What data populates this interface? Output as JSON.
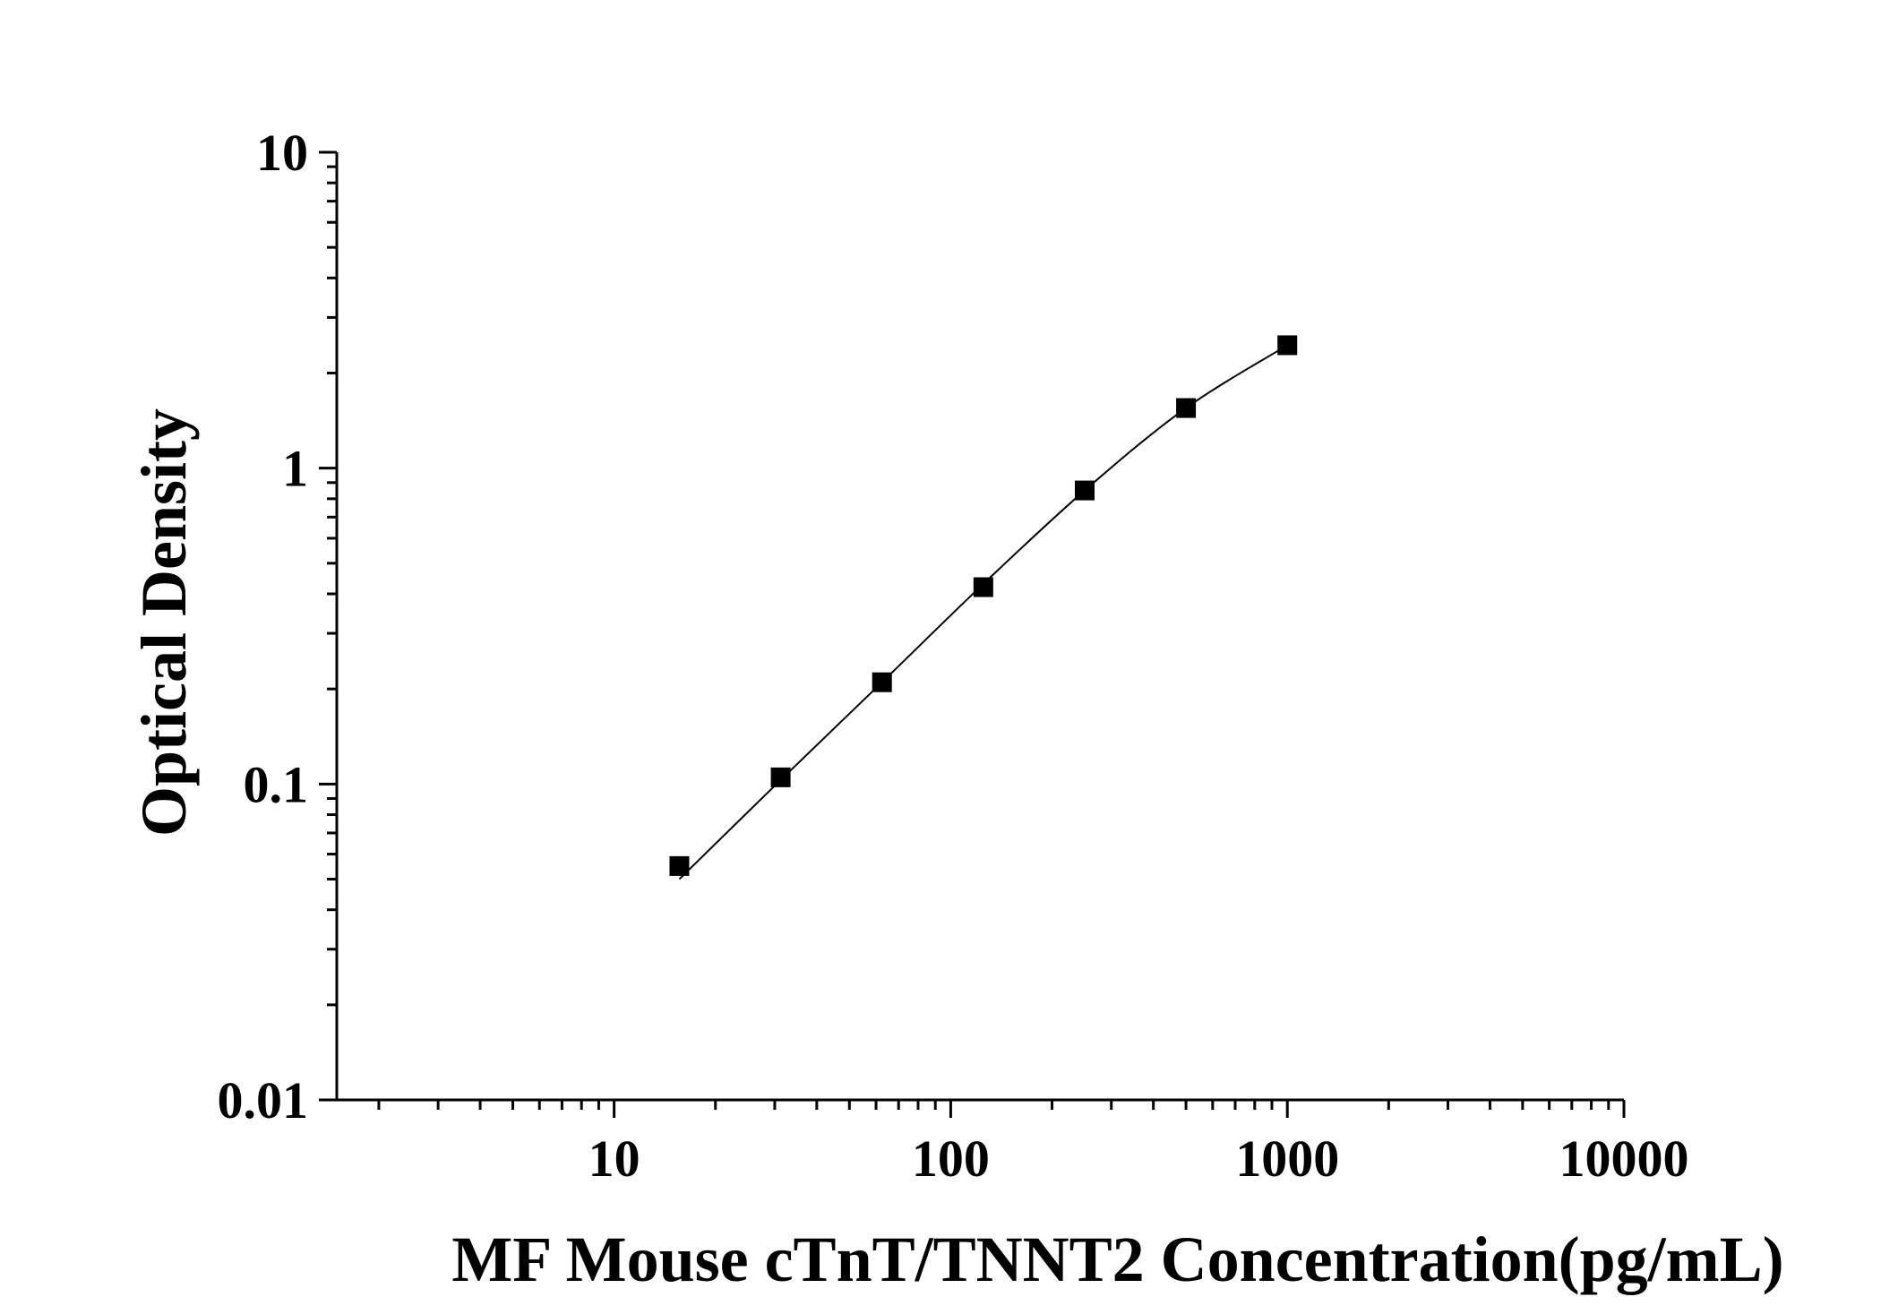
{
  "chart_data": {
    "type": "scatter",
    "title": "",
    "xlabel": "MF Mouse cTnT/TNNT2 Concentration(pg/mL)",
    "ylabel": "Optical Density",
    "x_scale": "log",
    "y_scale": "log",
    "xlim": [
      1.5,
      10000
    ],
    "ylim": [
      0.01,
      10
    ],
    "x_ticks": [
      10,
      100,
      1000,
      10000
    ],
    "x_tick_labels": [
      "10",
      "100",
      "1000",
      "10000"
    ],
    "y_ticks": [
      0.01,
      0.1,
      1,
      10
    ],
    "y_tick_labels": [
      "0.01",
      "0.1",
      "1",
      "10"
    ],
    "grid": false,
    "legend": "none",
    "colors": {
      "marker": "#000000",
      "line": "#000000",
      "axis": "#000000"
    },
    "series": [
      {
        "x": [
          15.625,
          31.25,
          62.5,
          125,
          250,
          500,
          1000
        ],
        "y": [
          0.055,
          0.105,
          0.21,
          0.42,
          0.85,
          1.55,
          2.45
        ],
        "marker": "square",
        "fit_line": true
      }
    ],
    "fit_curve": {
      "x": [
        15.625,
        31.25,
        62.5,
        125,
        250,
        500,
        1000
      ],
      "y": [
        0.05,
        0.103,
        0.21,
        0.43,
        0.85,
        1.55,
        2.45
      ]
    }
  }
}
